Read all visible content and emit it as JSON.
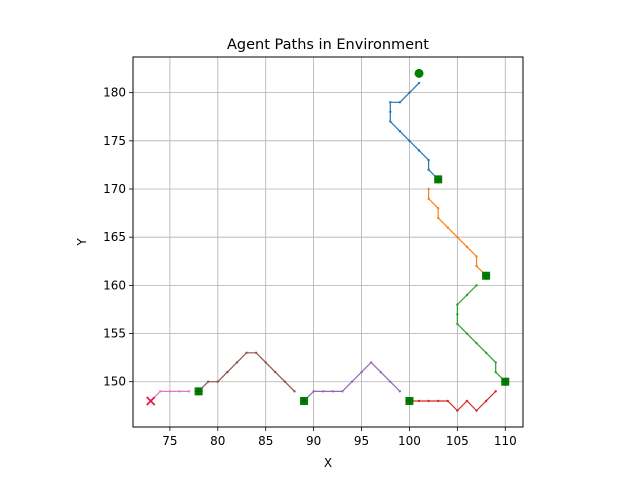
{
  "chart_data": {
    "type": "line",
    "title": "Agent Paths in Environment",
    "xlabel": "X",
    "ylabel": "Y",
    "xlim": [
      71.15,
      111.85
    ],
    "ylim": [
      145.3,
      183.7
    ],
    "xticks": [
      75,
      80,
      85,
      90,
      95,
      100,
      105,
      110
    ],
    "yticks": [
      150,
      155,
      160,
      165,
      170,
      175,
      180
    ],
    "grid": true,
    "series": [
      {
        "color": "#1f77b4",
        "points": [
          [
            101,
            181
          ],
          [
            100,
            180
          ],
          [
            99,
            179
          ],
          [
            98,
            179
          ],
          [
            98,
            178
          ],
          [
            98,
            177
          ],
          [
            99,
            176
          ],
          [
            100,
            175
          ],
          [
            101,
            174
          ],
          [
            102,
            173
          ],
          [
            102,
            172
          ],
          [
            103,
            171
          ]
        ]
      },
      {
        "color": "#ff7f0e",
        "points": [
          [
            102,
            170
          ],
          [
            102,
            169
          ],
          [
            103,
            168
          ],
          [
            103,
            167
          ],
          [
            104,
            166
          ],
          [
            105,
            165
          ],
          [
            106,
            164
          ],
          [
            107,
            163
          ],
          [
            107,
            162
          ],
          [
            108,
            161
          ]
        ]
      },
      {
        "color": "#2ca02c",
        "points": [
          [
            107,
            160
          ],
          [
            106,
            159
          ],
          [
            105,
            158
          ],
          [
            105,
            157
          ],
          [
            105,
            156
          ],
          [
            106,
            155
          ],
          [
            107,
            154
          ],
          [
            108,
            153
          ],
          [
            109,
            152
          ],
          [
            109,
            151
          ],
          [
            110,
            150
          ]
        ]
      },
      {
        "color": "#d62728",
        "points": [
          [
            109,
            149
          ],
          [
            108,
            148
          ],
          [
            107,
            147
          ],
          [
            106,
            148
          ],
          [
            105,
            147
          ],
          [
            104,
            148
          ],
          [
            103,
            148
          ],
          [
            102,
            148
          ],
          [
            101,
            148
          ],
          [
            100,
            148
          ]
        ]
      },
      {
        "color": "#9467bd",
        "points": [
          [
            99,
            149
          ],
          [
            98,
            150
          ],
          [
            97,
            151
          ],
          [
            96,
            152
          ],
          [
            95,
            151
          ],
          [
            94,
            150
          ],
          [
            93,
            149
          ],
          [
            92,
            149
          ],
          [
            91,
            149
          ],
          [
            90,
            149
          ],
          [
            89,
            148
          ]
        ]
      },
      {
        "color": "#8c564b",
        "points": [
          [
            88,
            149
          ],
          [
            87,
            150
          ],
          [
            86,
            151
          ],
          [
            85,
            152
          ],
          [
            84,
            153
          ],
          [
            83,
            153
          ],
          [
            82,
            152
          ],
          [
            81,
            151
          ],
          [
            80,
            150
          ],
          [
            79,
            150
          ],
          [
            78,
            149
          ]
        ]
      },
      {
        "color": "#e377c2",
        "points": [
          [
            77,
            149
          ],
          [
            76,
            149
          ],
          [
            75,
            149
          ],
          [
            74,
            149
          ],
          [
            73,
            148
          ]
        ]
      }
    ],
    "markers": {
      "start": {
        "x": 101,
        "y": 182,
        "shape": "circle",
        "color": "#008000"
      },
      "waypoints": [
        [
          103,
          171
        ],
        [
          108,
          161
        ],
        [
          110,
          150
        ],
        [
          100,
          148
        ],
        [
          89,
          148
        ],
        [
          78,
          149
        ]
      ],
      "waypoint_shape": "square",
      "waypoint_color": "#008000",
      "end": {
        "x": 73,
        "y": 148,
        "shape": "x",
        "color": "#e6194b"
      }
    }
  }
}
